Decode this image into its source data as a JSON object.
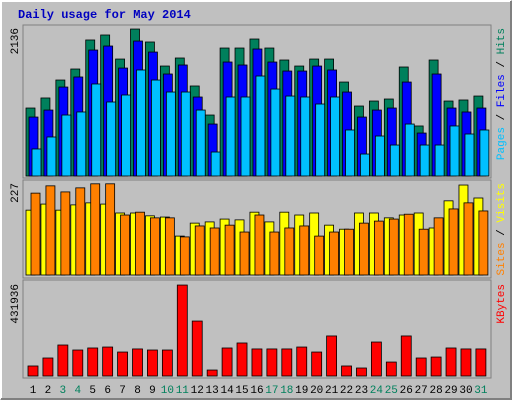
{
  "chart_data": [
    {
      "type": "bar",
      "title": "Daily usage for May 2014",
      "legend_separator": " / ",
      "ylim": [
        0,
        2136
      ],
      "yticks": [
        2136
      ],
      "series": [
        {
          "name": "Pages",
          "color": "#00c0ff",
          "values": [
            390,
            563,
            880,
            924,
            1328,
            1068,
            1169,
            1530,
            1385,
            1212,
            1212,
            952,
            346,
            1140,
            1140,
            1443,
            1255,
            1154,
            1140,
            1039,
            1140,
            664,
            317,
            577,
            447,
            750,
            447,
            447,
            722,
            606,
            664
          ]
        },
        {
          "name": "Files",
          "color": "#0000ff",
          "values": [
            851,
            952,
            1284,
            1429,
            1818,
            1876,
            1558,
            1948,
            1789,
            1472,
            1602,
            1140,
            750,
            1645,
            1602,
            1833,
            1645,
            1515,
            1515,
            1587,
            1530,
            1212,
            851,
            952,
            981,
            1356,
            620,
            1472,
            981,
            924,
            981
          ]
        },
        {
          "name": "Hits",
          "color": "#00805c",
          "values": [
            981,
            1126,
            1385,
            1544,
            1963,
            2035,
            1688,
            2121,
            1934,
            1587,
            1703,
            1299,
            880,
            1847,
            1847,
            1977,
            1847,
            1674,
            1587,
            1688,
            1688,
            1356,
            1010,
            1082,
            1111,
            1573,
            722,
            1674,
            1082,
            1097,
            1154
          ]
        }
      ]
    },
    {
      "type": "bar",
      "legend_separator": " / ",
      "ylim": [
        0,
        227
      ],
      "yticks": [
        227
      ],
      "series": [
        {
          "name": "Sites",
          "color": "#ff8000",
          "values": [
            202,
            220,
            205,
            215,
            225,
            225,
            148,
            155,
            141,
            141,
            94,
            121,
            116,
            123,
            106,
            148,
            106,
            116,
            121,
            96,
            106,
            113,
            128,
            133,
            138,
            150,
            113,
            141,
            163,
            178,
            158
          ]
        },
        {
          "name": "Visits",
          "color": "#ffff00",
          "values": [
            160,
            175,
            160,
            173,
            178,
            175,
            153,
            153,
            146,
            143,
            96,
            128,
            131,
            138,
            136,
            155,
            131,
            155,
            148,
            153,
            123,
            113,
            153,
            153,
            141,
            148,
            153,
            116,
            183,
            222,
            190
          ]
        }
      ]
    },
    {
      "type": "bar",
      "ylim": [
        0,
        431936
      ],
      "yticks": [
        431936
      ],
      "categories": [
        "1",
        "2",
        "3",
        "4",
        "5",
        "6",
        "7",
        "8",
        "9",
        "10",
        "11",
        "12",
        "13",
        "14",
        "15",
        "16",
        "17",
        "18",
        "19",
        "20",
        "21",
        "22",
        "23",
        "24",
        "25",
        "26",
        "27",
        "28",
        "29",
        "30",
        "31"
      ],
      "category_colors": [
        "#000000",
        "#000000",
        "#00805c",
        "#00805c",
        "#000000",
        "#000000",
        "#000000",
        "#000000",
        "#000000",
        "#00805c",
        "#00805c",
        "#000000",
        "#000000",
        "#000000",
        "#000000",
        "#000000",
        "#00805c",
        "#00805c",
        "#000000",
        "#000000",
        "#000000",
        "#000000",
        "#000000",
        "#00805c",
        "#00805c",
        "#000000",
        "#000000",
        "#000000",
        "#000000",
        "#000000",
        "#00805c"
      ],
      "series": [
        {
          "name": "KBytes",
          "color": "#ff0000",
          "values": [
            47000,
            84500,
            145500,
            122000,
            131500,
            136000,
            112500,
            127000,
            122000,
            122000,
            427000,
            258000,
            28000,
            131500,
            155000,
            127000,
            127000,
            127000,
            136000,
            112500,
            188000,
            47000,
            37500,
            159500,
            65500,
            188000,
            84500,
            89000,
            131500,
            127000,
            127000
          ]
        }
      ]
    }
  ]
}
